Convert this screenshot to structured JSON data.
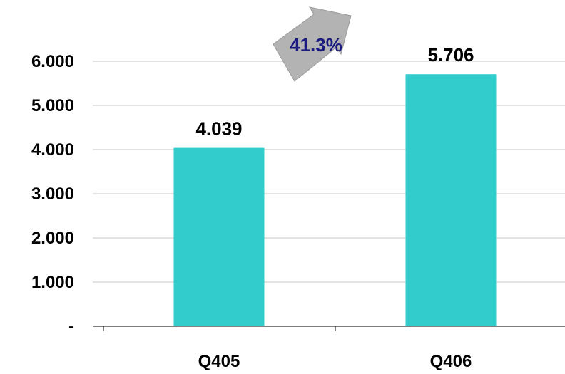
{
  "chart_data": {
    "type": "bar",
    "categories": [
      "Q405",
      "Q406"
    ],
    "values": [
      4039,
      5706
    ],
    "value_labels": [
      "4.039",
      "5.706"
    ],
    "ylim": [
      0,
      6000
    ],
    "yticks": [
      0,
      1000,
      2000,
      3000,
      4000,
      5000,
      6000
    ],
    "ytick_labels": [
      "-",
      "1.000",
      "2.000",
      "3.000",
      "4.000",
      "5.000",
      "6.000"
    ],
    "grid": true,
    "title": "",
    "xlabel": "",
    "ylabel": "",
    "bar_color": "#33cccc",
    "annotation": {
      "text": "41.3%",
      "color": "#1a1a80",
      "arrow_icon": "curved-arrow-icon",
      "arrow_color": "#b3b3b3"
    }
  }
}
